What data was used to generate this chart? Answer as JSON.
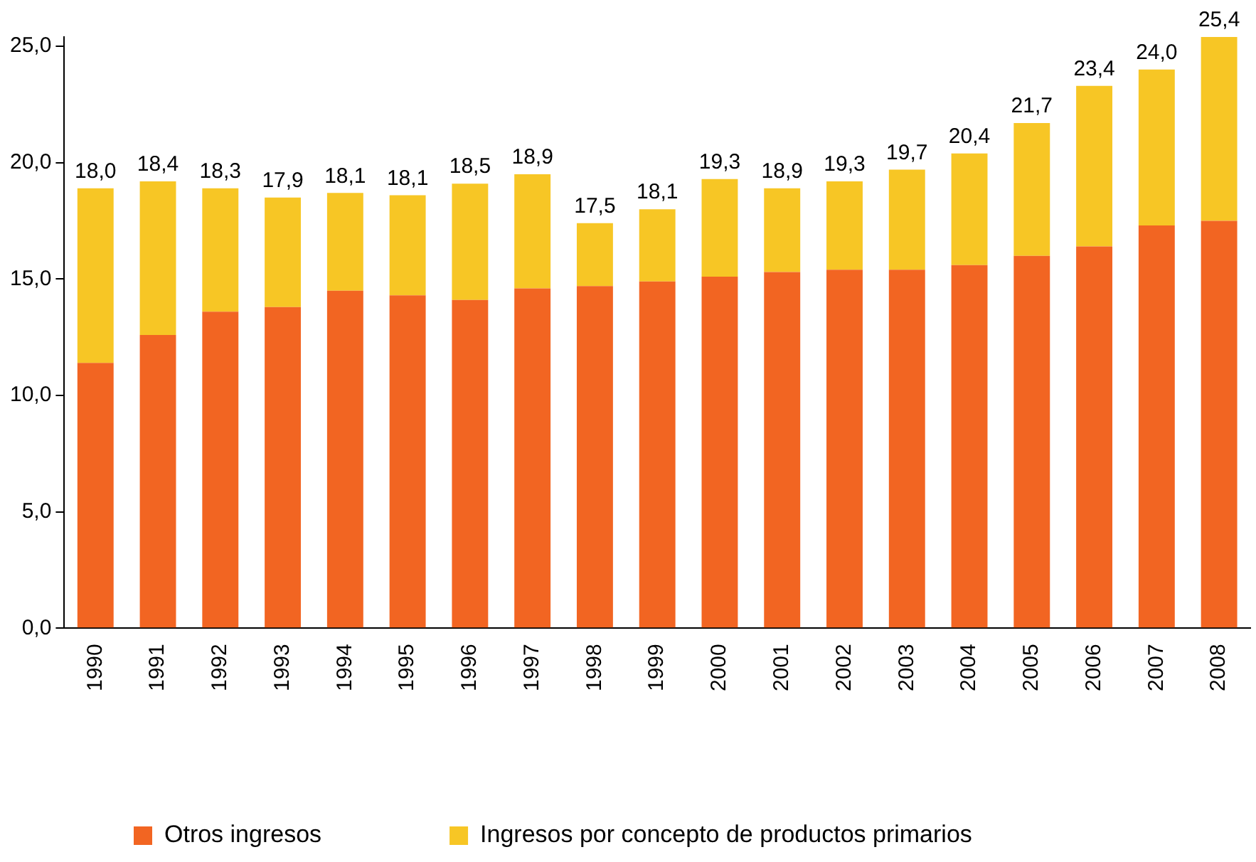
{
  "chart_data": {
    "type": "bar",
    "stacked": true,
    "categories": [
      "1990",
      "1991",
      "1992",
      "1993",
      "1994",
      "1995",
      "1996",
      "1997",
      "1998",
      "1999",
      "2000",
      "2001",
      "2002",
      "2003",
      "2004",
      "2005",
      "2006",
      "2007",
      "2008"
    ],
    "series": [
      {
        "name": "Otros ingresos",
        "color": "#f26522",
        "values": [
          11.4,
          12.6,
          13.6,
          13.8,
          14.5,
          14.3,
          14.1,
          14.6,
          14.7,
          14.9,
          15.1,
          15.3,
          15.4,
          15.4,
          15.6,
          16.0,
          16.4,
          17.3,
          17.5
        ]
      },
      {
        "name": "Ingresos por concepto de productos primarios",
        "color": "#f7c625",
        "values": [
          7.5,
          6.6,
          5.3,
          4.7,
          4.2,
          4.3,
          5.0,
          4.9,
          2.7,
          3.1,
          4.2,
          3.6,
          3.8,
          4.3,
          4.8,
          5.7,
          6.9,
          6.7,
          7.9
        ]
      }
    ],
    "annotations": [
      {
        "text": "18,0",
        "x": "1990",
        "y": 18.9
      },
      {
        "text": "18,4",
        "x": "1991",
        "y": 19.2
      },
      {
        "text": "18,3",
        "x": "1992",
        "y": 18.9
      },
      {
        "text": "17,9",
        "x": "1993",
        "y": 18.5
      },
      {
        "text": "18,1",
        "x": "1994",
        "y": 18.7
      },
      {
        "text": "18,1",
        "x": "1995",
        "y": 18.6
      },
      {
        "text": "18,5",
        "x": "1996",
        "y": 19.1
      },
      {
        "text": "18,9",
        "x": "1997",
        "y": 19.5
      },
      {
        "text": "17,5",
        "x": "1998",
        "y": 17.4
      },
      {
        "text": "18,1",
        "x": "1999",
        "y": 18.0
      },
      {
        "text": "19,3",
        "x": "2000",
        "y": 19.3
      },
      {
        "text": "18,9",
        "x": "2001",
        "y": 18.9
      },
      {
        "text": "19,3",
        "x": "2002",
        "y": 19.2
      },
      {
        "text": "19,7",
        "x": "2003",
        "y": 19.7
      },
      {
        "text": "20,4",
        "x": "2004",
        "y": 20.4
      },
      {
        "text": "21,7",
        "x": "2005",
        "y": 21.7
      },
      {
        "text": "23,4",
        "x": "2006",
        "y": 23.3
      },
      {
        "text": "24,0",
        "x": "2007",
        "y": 24.0
      },
      {
        "text": "25,4",
        "x": "2008",
        "y": 25.4
      }
    ],
    "ylim": [
      0,
      25.4
    ],
    "yticks": [
      {
        "value": 0,
        "label": "0,0"
      },
      {
        "value": 5,
        "label": "5,0"
      },
      {
        "value": 10,
        "label": "10,0"
      },
      {
        "value": 15,
        "label": "15,0"
      },
      {
        "value": 20,
        "label": "20,0"
      },
      {
        "value": 25,
        "label": "25,0"
      }
    ],
    "grid": false,
    "legend": "bottom"
  }
}
